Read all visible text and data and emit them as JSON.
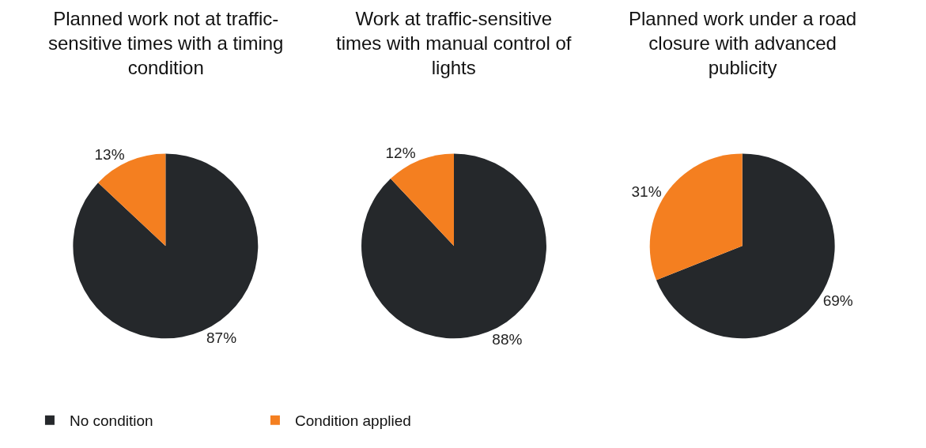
{
  "chart_data": [
    {
      "type": "pie",
      "title": "Planned work not at traffic-sensitive times with a timing condition",
      "categories": [
        "No condition",
        "Condition applied"
      ],
      "values": [
        87,
        13
      ],
      "value_labels": [
        "87%",
        "13%"
      ],
      "colors": [
        "#25282b",
        "#f47f20"
      ],
      "legend": "bottom"
    },
    {
      "type": "pie",
      "title": "Work at traffic-sensitive times with manual control of lights",
      "categories": [
        null,
        null
      ],
      "values": [
        88,
        12
      ],
      "value_labels": [
        "88%",
        "12%"
      ],
      "colors": [
        "#25282b",
        "#f47f20"
      ]
    },
    {
      "type": "pie",
      "title": "Planned work under a road closure with advanced publicity",
      "categories": [
        null,
        null
      ],
      "values": [
        69,
        31
      ],
      "value_labels": [
        "69%",
        "31%"
      ],
      "colors": [
        "#25282b",
        "#f47f20"
      ]
    }
  ]
}
